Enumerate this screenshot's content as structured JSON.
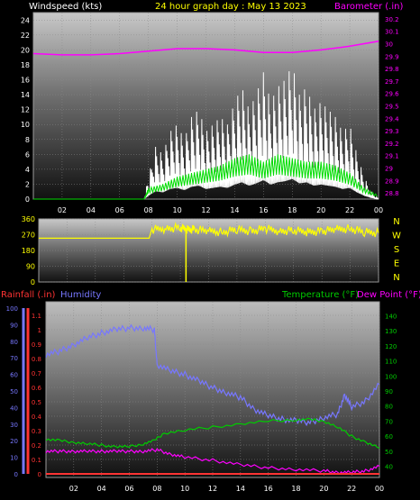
{
  "header": {
    "left": "Windspeed (kts)",
    "center": "24 hour graph day : May 13 2023",
    "right": "Barometer (.in)"
  },
  "mid_header": {
    "rainfall": "Rainfall (.in)",
    "humidity": "Humidity",
    "temperature": "Temperature (°F)",
    "dewpoint": "Dew Point (°F)"
  },
  "colors": {
    "header_left": "#ffffff",
    "header_center": "#ffff00",
    "barometer": "#ff00ff",
    "wind_gust": "#ffffff",
    "wind_avg": "#00dd00",
    "wind_direction": "#ffff00",
    "rainfall": "#ff3333",
    "humidity": "#7777ff",
    "temperature": "#00cc00",
    "dewpoint": "#ff00ff"
  },
  "chart_data": [
    {
      "type": "line",
      "x_ticks": [
        "02",
        "04",
        "06",
        "08",
        "10",
        "12",
        "14",
        "16",
        "18",
        "20",
        "22",
        "00"
      ],
      "y_left_ticks": [
        "0",
        "2",
        "4",
        "6",
        "8",
        "10",
        "12",
        "14",
        "16",
        "18",
        "20",
        "22",
        "24"
      ],
      "y_right_ticks": [
        "28.8",
        "28.9",
        "29",
        "29.1",
        "29.2",
        "29.3",
        "29.4",
        "29.5",
        "29.6",
        "29.7",
        "29.8",
        "29.9",
        "30",
        "30.1",
        "30.2"
      ],
      "ylim_left": [
        0,
        25
      ],
      "ylim_right": [
        28.75,
        30.25
      ],
      "series": [
        {
          "axis": "right",
          "x": [
            0,
            2,
            4,
            6,
            8,
            10,
            12,
            14,
            16,
            18,
            20,
            22,
            24
          ],
          "y": [
            29.92,
            29.91,
            29.91,
            29.92,
            29.94,
            29.96,
            29.96,
            29.95,
            29.93,
            29.93,
            29.95,
            29.98,
            30.02
          ]
        },
        {
          "axis": "left",
          "x": [
            0,
            7.7,
            8.0,
            8.5,
            9,
            9.5,
            10,
            10.5,
            11,
            11.5,
            12,
            12.5,
            13,
            13.5,
            14,
            14.5,
            15,
            15.5,
            16,
            16.5,
            17,
            17.5,
            18,
            18.5,
            19,
            19.5,
            20,
            20.5,
            21,
            21.5,
            22,
            22.5,
            23,
            23.5,
            24
          ],
          "y": [
            0,
            0,
            3,
            7,
            6,
            9,
            10,
            8,
            11,
            12,
            9,
            10,
            11,
            10,
            13,
            15,
            12,
            14,
            17,
            13,
            15,
            16,
            18,
            14,
            15,
            12,
            13,
            12,
            11,
            9,
            10,
            6,
            3,
            1,
            0
          ]
        },
        {
          "axis": "left",
          "x": [
            0,
            7.7,
            8.0,
            9,
            10,
            11,
            12,
            13,
            14,
            15,
            16,
            17,
            18,
            19,
            20,
            21,
            22,
            23,
            24
          ],
          "y": [
            0,
            0,
            1.5,
            2,
            3,
            3.5,
            4,
            4.5,
            5.5,
            6,
            5,
            6,
            5.5,
            5,
            5,
            4.5,
            3.5,
            1.5,
            0.5
          ]
        }
      ]
    },
    {
      "type": "line",
      "x_ticks": [
        "02",
        "04",
        "06",
        "08",
        "10",
        "12",
        "14",
        "16",
        "18",
        "20",
        "22",
        "00"
      ],
      "y_ticks": [
        "0",
        "90",
        "180",
        "270",
        "360"
      ],
      "direction_labels": [
        "N",
        "W",
        "S",
        "E",
        "N"
      ],
      "ylim": [
        0,
        360
      ],
      "series": [
        {
          "x": [
            0,
            7.8,
            8.0,
            9,
            10,
            10.5,
            11,
            12,
            13,
            14,
            15,
            16,
            17,
            18,
            19,
            20,
            21,
            22,
            23,
            24
          ],
          "y": [
            250,
            250,
            300,
            305,
            310,
            300,
            300,
            290,
            285,
            300,
            290,
            305,
            290,
            295,
            285,
            290,
            300,
            305,
            285,
            280
          ]
        }
      ]
    },
    {
      "type": "line",
      "x_ticks": [
        "02",
        "04",
        "06",
        "08",
        "10",
        "12",
        "14",
        "16",
        "18",
        "20",
        "22",
        "00"
      ],
      "y_rain_ticks": [
        "0",
        "0.1",
        "0.2",
        "0.3",
        "0.4",
        "0.5",
        "0.6",
        "0.7",
        "0.8",
        "0.9",
        "1",
        "1.1"
      ],
      "y_humidity_ticks": [
        "0",
        "10",
        "20",
        "30",
        "40",
        "50",
        "60",
        "70",
        "80",
        "90",
        "100"
      ],
      "y_temp_ticks": [
        "40",
        "50",
        "60",
        "70",
        "80",
        "90",
        "100",
        "110",
        "120",
        "130",
        "140"
      ],
      "ylim_rain": [
        0,
        1.15
      ],
      "ylim_humidity": [
        0,
        100
      ],
      "ylim_temp": [
        35,
        145
      ],
      "series": [
        {
          "axis": "humidity",
          "x": [
            0,
            1,
            2,
            3,
            4,
            5,
            6,
            7,
            7.8,
            8.0,
            9,
            10,
            11,
            12,
            13,
            14,
            15,
            16,
            17,
            18,
            19,
            20,
            21,
            21.5,
            22,
            23,
            24
          ],
          "y": [
            72,
            74,
            78,
            82,
            85,
            87,
            88,
            88,
            87,
            66,
            62,
            60,
            56,
            52,
            49,
            46,
            39,
            35,
            33,
            32,
            31,
            34,
            36,
            48,
            40,
            44,
            54
          ]
        },
        {
          "axis": "temp",
          "x": [
            0,
            1,
            2,
            3,
            4,
            5,
            6,
            7,
            7.8,
            8.5,
            10,
            12,
            14,
            16,
            18,
            19,
            20,
            21,
            22,
            23,
            24
          ],
          "y": [
            58,
            57,
            56,
            55,
            54,
            53,
            53,
            55,
            57,
            62,
            64,
            66,
            68,
            70,
            71,
            71,
            70,
            66,
            60,
            56,
            52
          ]
        },
        {
          "axis": "temp",
          "x": [
            0,
            1,
            2,
            3,
            4,
            5,
            6,
            7,
            8,
            9,
            10,
            12,
            14,
            16,
            18,
            20,
            21,
            22,
            23,
            24
          ],
          "y": [
            50,
            50,
            50,
            50,
            50,
            50,
            50,
            50,
            51,
            48,
            46,
            44,
            41,
            39,
            38,
            37,
            36,
            36,
            37,
            40
          ]
        },
        {
          "axis": "rain",
          "x": [
            0,
            24
          ],
          "y": [
            0,
            0
          ]
        }
      ]
    }
  ]
}
